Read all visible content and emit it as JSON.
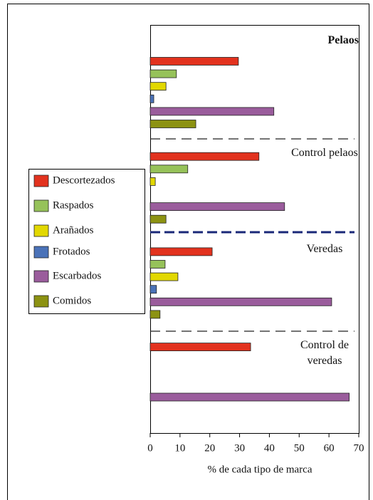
{
  "chart_data": {
    "type": "hbar",
    "categories": [
      "Pelaos",
      "Control pelaos",
      "Veredas",
      "Control de veredas"
    ],
    "series": [
      {
        "name": "Descortezados",
        "color": "#e2321e",
        "values": [
          29.6,
          36.5,
          20.8,
          33.7
        ]
      },
      {
        "name": "Raspados",
        "color": "#96c25a",
        "values": [
          8.8,
          12.6,
          5,
          null
        ]
      },
      {
        "name": "Arañados",
        "color": "#e2d800",
        "values": [
          5.3,
          1.7,
          9.3,
          null
        ]
      },
      {
        "name": "Frotados",
        "color": "#4a72b8",
        "values": [
          1.2,
          null,
          2.1,
          null
        ]
      },
      {
        "name": "Escarbados",
        "color": "#9a5c9c",
        "values": [
          41.5,
          45.1,
          60.9,
          66.8
        ]
      },
      {
        "name": "Comidos",
        "color": "#8c9212",
        "values": [
          15.3,
          5.3,
          3.3,
          null
        ]
      }
    ],
    "xlabel": "% de cada tipo de marca",
    "xlim": [
      0,
      70
    ],
    "xticks": [
      0,
      10,
      20,
      30,
      40,
      50,
      60,
      70
    ]
  }
}
